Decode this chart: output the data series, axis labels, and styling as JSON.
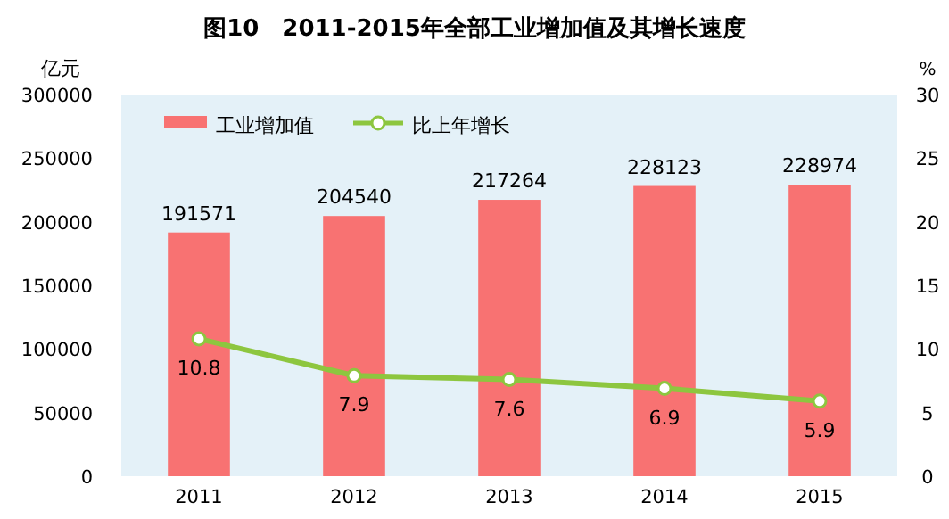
{
  "chart_data": {
    "type": "bar",
    "title": "图10　2011-2015年全部工业增加值及其增长速度",
    "ylabel": "亿元",
    "y2label": "%",
    "categories": [
      "2011",
      "2012",
      "2013",
      "2014",
      "2015"
    ],
    "series": [
      {
        "name": "工业增加值",
        "color": "#f87272",
        "values": [
          191571,
          204540,
          217264,
          228123,
          228974
        ]
      },
      {
        "name": "比上年增长",
        "type": "line",
        "axis": "y2",
        "color": "#8dc63f",
        "marker": "circle",
        "values": [
          10.8,
          7.9,
          7.6,
          6.9,
          5.9
        ]
      }
    ],
    "ylim": [
      0,
      300000
    ],
    "yticks": [
      0,
      50000,
      100000,
      150000,
      200000,
      250000,
      300000
    ],
    "y2lim": [
      0,
      30
    ],
    "y2ticks": [
      0,
      5,
      10,
      15,
      20,
      25,
      30
    ],
    "data_labels": true,
    "legend": "top left",
    "grid": false
  }
}
